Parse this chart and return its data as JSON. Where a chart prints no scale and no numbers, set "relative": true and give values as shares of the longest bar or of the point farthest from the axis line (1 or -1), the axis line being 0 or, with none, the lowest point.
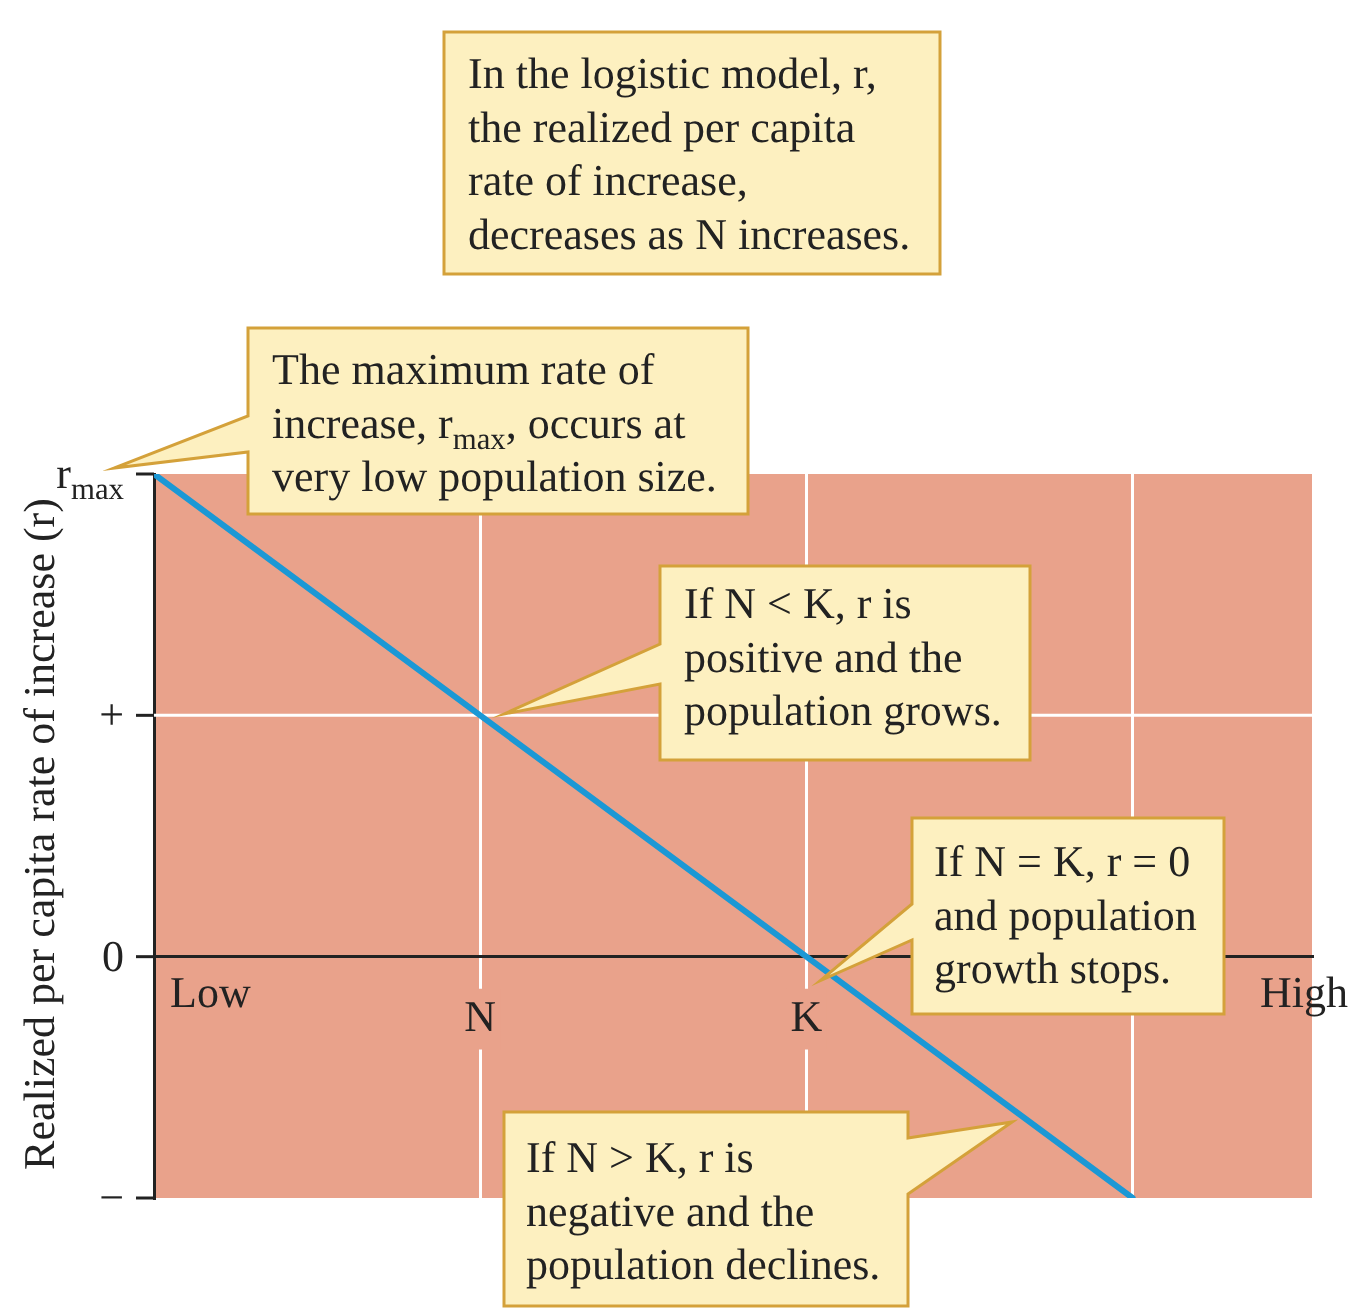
{
  "chart_data": {
    "type": "line",
    "relative": true,
    "title": "In the logistic model, r, the realized per capita rate of increase, decreases as N increases.",
    "ylabel": "Realized per capita rate of increase (r)",
    "categories": [
      null,
      "N",
      "K",
      null
    ],
    "series": [
      {
        "color": "#1b98d5",
        "values": [
          1,
          0.5,
          0,
          -0.5
        ]
      }
    ],
    "bands": [
      {
        "axis": "y",
        "from": -0.5,
        "to": 1,
        "color": "#e9a28b"
      }
    ],
    "ref_lines": [
      {
        "axis": "y",
        "value": 0.5,
        "label": "+",
        "color": "#ffffff"
      }
    ],
    "grid": "x",
    "annotations": [
      "Low",
      "High",
      "r$_{max}$",
      "0",
      "−",
      {
        "text": "The maximum rate of increase, r$_{max}$, occurs at very low population size.",
        "y": 1
      },
      "If N < K, r is positive and the population grows.",
      {
        "text": "If N = K, r = 0 and population growth stops.",
        "x": "K",
        "y": 0
      },
      "If N > K, r is negative and the population declines."
    ]
  }
}
